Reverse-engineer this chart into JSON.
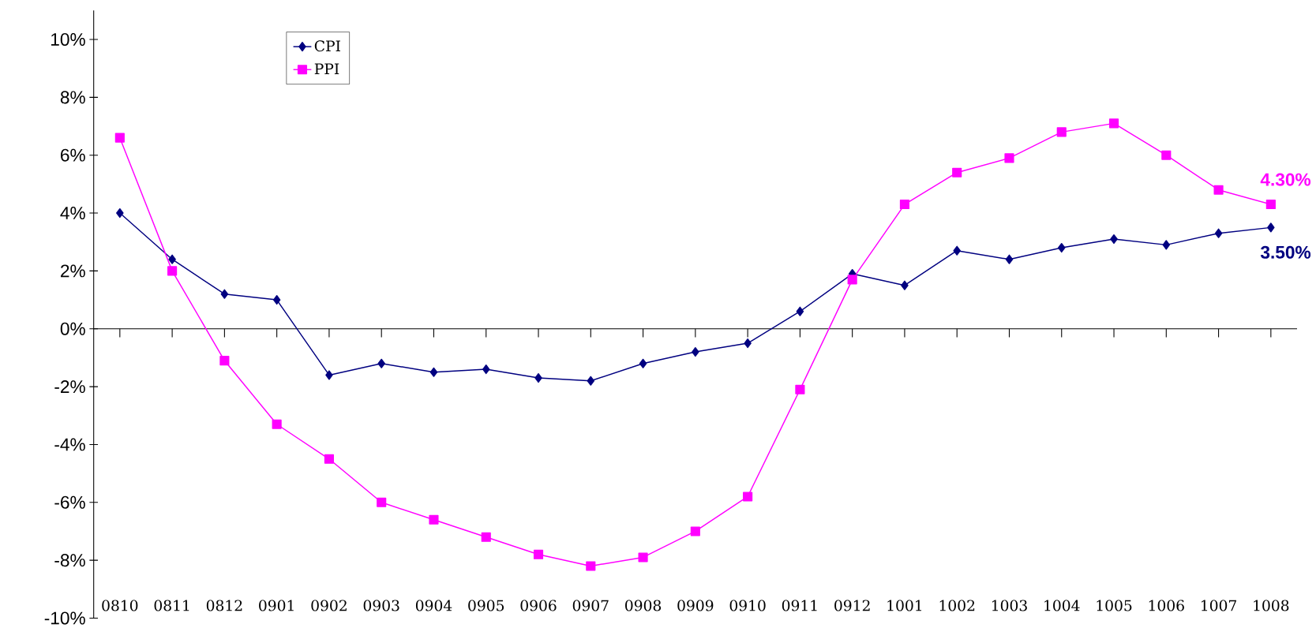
{
  "chart_data": {
    "type": "line",
    "categories": [
      "0810",
      "0811",
      "0812",
      "0901",
      "0902",
      "0903",
      "0904",
      "0905",
      "0906",
      "0907",
      "0908",
      "0909",
      "0910",
      "0911",
      "0912",
      "1001",
      "1002",
      "1003",
      "1004",
      "1005",
      "1006",
      "1007",
      "1008"
    ],
    "series": [
      {
        "name": "CPI",
        "color": "#000080",
        "marker": "diamond",
        "values": [
          4.0,
          2.4,
          1.2,
          1.0,
          -1.6,
          -1.2,
          -1.5,
          -1.4,
          -1.7,
          -1.8,
          -1.2,
          -0.8,
          -0.5,
          0.6,
          1.9,
          1.5,
          2.7,
          2.4,
          2.8,
          3.1,
          2.9,
          3.3,
          3.5
        ]
      },
      {
        "name": "PPI",
        "color": "#ff00ff",
        "marker": "square",
        "values": [
          6.6,
          2.0,
          -1.1,
          -3.3,
          -4.5,
          -6.0,
          -6.6,
          -7.2,
          -7.8,
          -8.2,
          -7.9,
          -7.0,
          -5.8,
          -2.1,
          1.7,
          4.3,
          5.4,
          5.9,
          6.8,
          7.1,
          6.0,
          4.8,
          4.3
        ]
      }
    ],
    "ylim": [
      -10,
      11
    ],
    "yticks": [
      {
        "value": -10,
        "label": "-10%"
      },
      {
        "value": -8,
        "label": "-8%"
      },
      {
        "value": -6,
        "label": "-6%"
      },
      {
        "value": -4,
        "label": "-4%"
      },
      {
        "value": -2,
        "label": "-2%"
      },
      {
        "value": 0,
        "label": "0%"
      },
      {
        "value": 2,
        "label": "2%"
      },
      {
        "value": 4,
        "label": "4%"
      },
      {
        "value": 6,
        "label": "6%"
      },
      {
        "value": 8,
        "label": "8%"
      },
      {
        "value": 10,
        "label": "10%"
      }
    ],
    "annotations": [
      {
        "text": "4.30%",
        "x": "1008",
        "y": 4.3
      },
      {
        "text": "3.50%",
        "x": "1008",
        "y": 3.5
      }
    ],
    "legend": "top left",
    "line_style": "solid"
  }
}
